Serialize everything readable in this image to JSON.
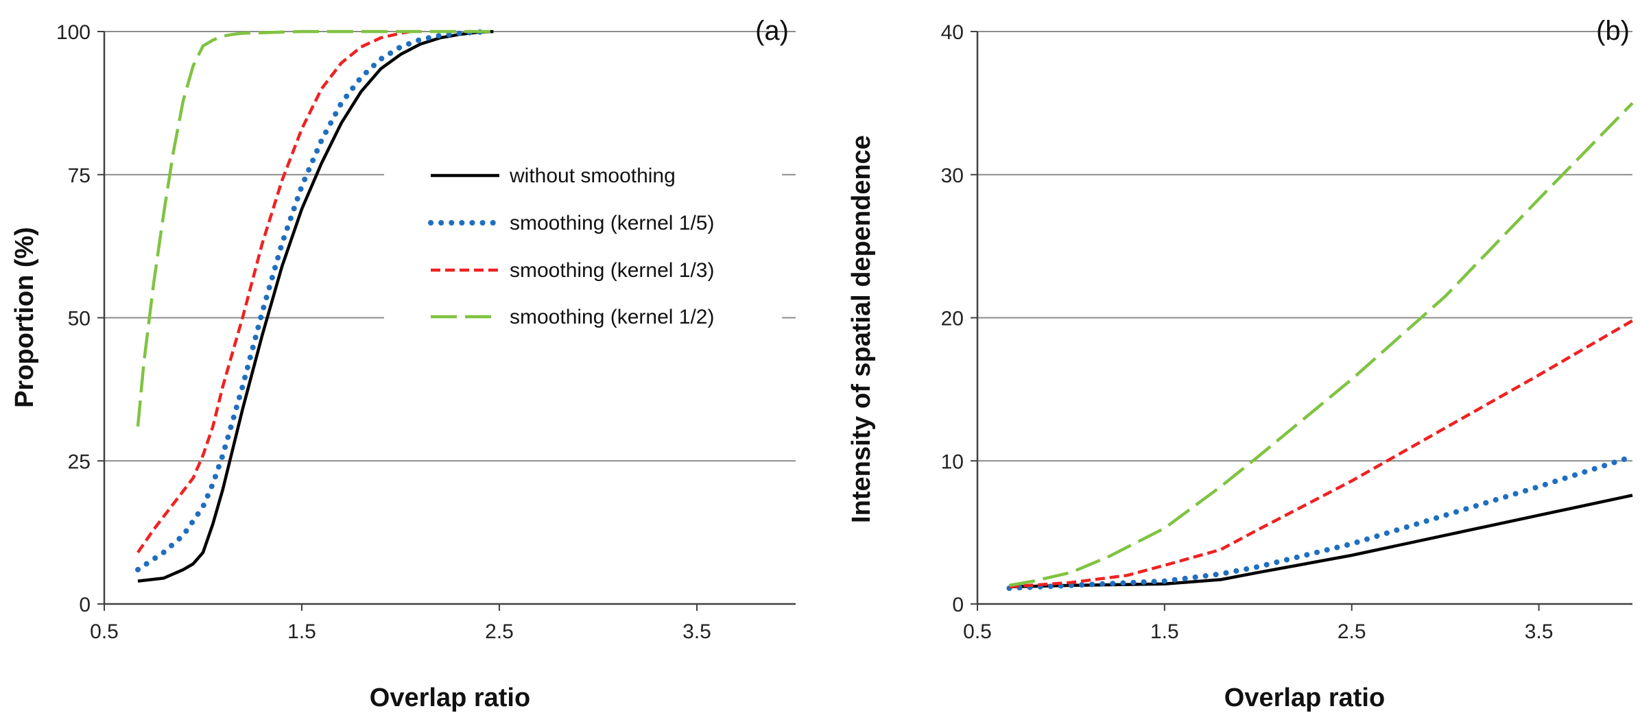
{
  "chart_data": [
    {
      "type": "line",
      "panel_label": "(a)",
      "xlabel": "Overlap ratio",
      "ylabel": "Proportion (%)",
      "xlim": [
        0.5,
        4.0
      ],
      "ylim": [
        0,
        100
      ],
      "xticks": [
        0.5,
        1.5,
        2.5,
        3.5
      ],
      "xtick_labels": [
        "0.5",
        "1.5",
        "2.5",
        "3.5"
      ],
      "yticks": [
        0,
        25,
        50,
        75,
        100
      ],
      "ytick_labels": [
        "0",
        "25",
        "50",
        "75",
        "100"
      ],
      "grid": "horizontal",
      "legend_placement": "center-right",
      "series": [
        {
          "name": "without smoothing",
          "color": "#000000",
          "style": "solid",
          "x": [
            0.67,
            0.8,
            0.9,
            0.95,
            1.0,
            1.05,
            1.1,
            1.15,
            1.2,
            1.3,
            1.4,
            1.5,
            1.6,
            1.7,
            1.8,
            1.9,
            2.0,
            2.1,
            2.2,
            2.3,
            2.4,
            2.47
          ],
          "y": [
            4,
            4.5,
            6,
            7,
            9,
            14,
            20,
            27,
            34,
            47,
            59,
            69,
            77,
            84,
            89.5,
            93.5,
            96,
            97.8,
            98.9,
            99.5,
            99.9,
            100
          ]
        },
        {
          "name": "smoothing (kernel 1/5)",
          "color": "#1f6fc0",
          "style": "dotted",
          "x": [
            0.67,
            0.8,
            0.9,
            1.0,
            1.05,
            1.1,
            1.15,
            1.2,
            1.3,
            1.4,
            1.5,
            1.6,
            1.7,
            1.8,
            1.9,
            2.0,
            2.1,
            2.2,
            2.3,
            2.4,
            2.45
          ],
          "y": [
            6,
            9,
            12,
            17,
            21,
            26,
            32,
            38,
            51,
            63,
            73,
            81,
            87.5,
            92,
            95.2,
            97.3,
            98.6,
            99.3,
            99.7,
            99.9,
            100
          ]
        },
        {
          "name": "smoothing (kernel 1/3)",
          "color": "#ee2222",
          "style": "dashed",
          "x": [
            0.67,
            0.75,
            0.85,
            0.95,
            1.0,
            1.05,
            1.1,
            1.2,
            1.3,
            1.4,
            1.5,
            1.6,
            1.7,
            1.8,
            1.9,
            2.0,
            2.05
          ],
          "y": [
            9,
            13,
            17.5,
            22,
            26,
            31,
            38,
            50,
            63,
            74,
            83,
            90,
            94.5,
            97.3,
            98.9,
            99.7,
            100
          ]
        },
        {
          "name": "smoothing (kernel 1/2)",
          "color": "#80c342",
          "style": "longdash",
          "x": [
            0.67,
            0.7,
            0.75,
            0.8,
            0.85,
            0.9,
            0.95,
            1.0,
            1.05,
            1.1,
            1.15,
            1.2,
            1.3,
            1.4,
            1.5,
            2.0,
            2.47
          ],
          "y": [
            31,
            42,
            56,
            68,
            79,
            88,
            94,
            97.5,
            98.5,
            99.2,
            99.5,
            99.7,
            99.8,
            99.9,
            100,
            100,
            100
          ]
        }
      ]
    },
    {
      "type": "line",
      "panel_label": "(b)",
      "xlabel": "Overlap ratio",
      "ylabel": "Intensity of spatial dependence",
      "xlim": [
        0.5,
        4.0
      ],
      "ylim": [
        0,
        40
      ],
      "xticks": [
        0.5,
        1.5,
        2.5,
        3.5
      ],
      "xtick_labels": [
        "0.5",
        "1.5",
        "2.5",
        "3.5"
      ],
      "yticks": [
        0,
        10,
        20,
        30,
        40
      ],
      "ytick_labels": [
        "0",
        "10",
        "20",
        "30",
        "40"
      ],
      "grid": "horizontal",
      "series": [
        {
          "name": "without smoothing",
          "color": "#000000",
          "style": "solid",
          "x": [
            0.67,
            1.0,
            1.5,
            1.8,
            2.0,
            2.5,
            3.0,
            3.5,
            4.0
          ],
          "y": [
            1.2,
            1.3,
            1.4,
            1.7,
            2.2,
            3.4,
            4.8,
            6.2,
            7.6
          ]
        },
        {
          "name": "smoothing (kernel 1/5)",
          "color": "#1f6fc0",
          "style": "dotted",
          "x": [
            0.67,
            1.0,
            1.5,
            1.8,
            2.0,
            2.5,
            3.0,
            3.5,
            4.0
          ],
          "y": [
            1.1,
            1.3,
            1.6,
            2.1,
            2.6,
            4.2,
            6.2,
            8.2,
            10.3
          ]
        },
        {
          "name": "smoothing (kernel 1/3)",
          "color": "#ee2222",
          "style": "dashed",
          "x": [
            0.67,
            1.0,
            1.3,
            1.5,
            1.8,
            2.0,
            2.5,
            3.0,
            3.5,
            4.0
          ],
          "y": [
            1.2,
            1.5,
            2.0,
            2.7,
            3.8,
            5.2,
            8.6,
            12.3,
            16.0,
            19.8
          ]
        },
        {
          "name": "smoothing (kernel 1/2)",
          "color": "#80c342",
          "style": "longdash",
          "x": [
            0.67,
            0.8,
            1.0,
            1.2,
            1.5,
            1.8,
            2.0,
            2.5,
            3.0,
            3.5,
            4.0
          ],
          "y": [
            1.3,
            1.6,
            2.2,
            3.3,
            5.3,
            8.2,
            10.3,
            15.7,
            21.5,
            28.3,
            35.0
          ]
        }
      ]
    }
  ]
}
